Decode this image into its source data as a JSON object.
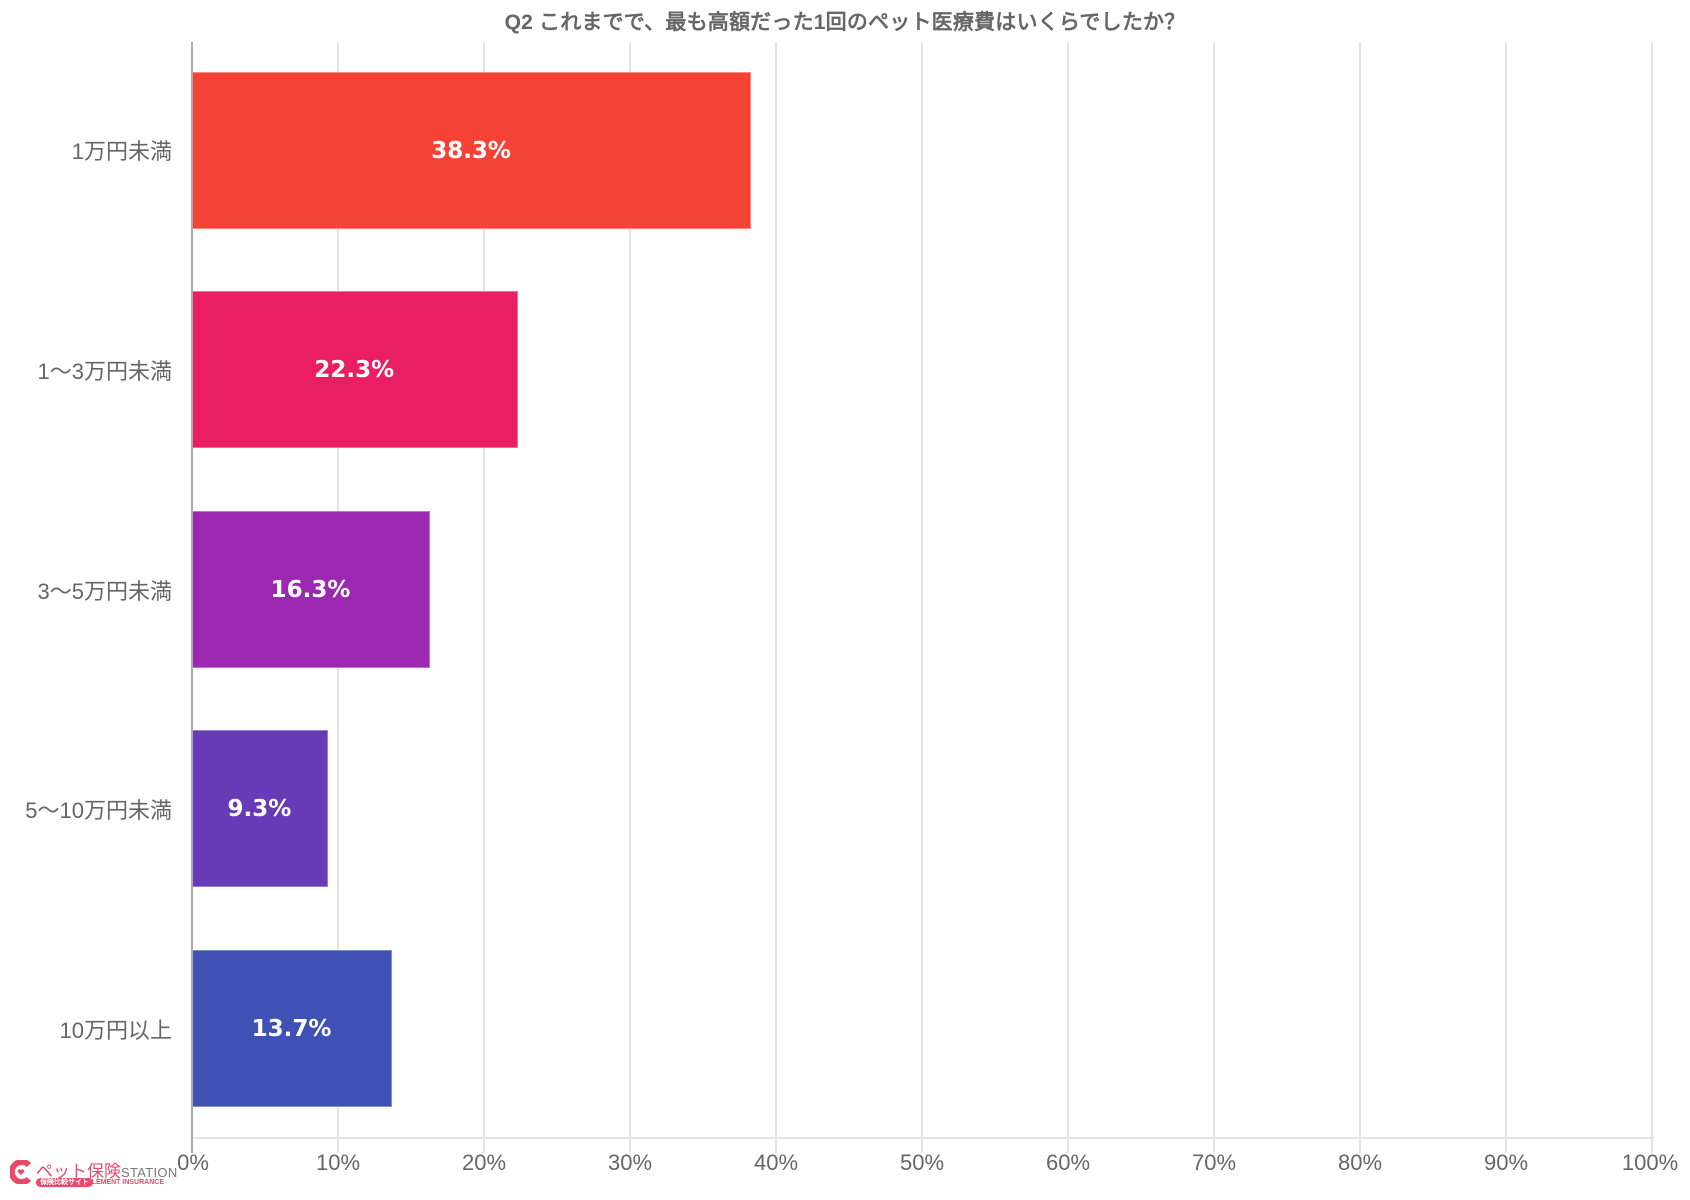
{
  "chart_data": {
    "type": "bar",
    "orientation": "horizontal",
    "title": "Q2 これまでで、最も高額だった1回のペット医療費はいくらでしたか？",
    "categories": [
      "1万円未満",
      "1〜3万円未満",
      "3〜5万円未満",
      "5〜10万円未満",
      "10万円以上"
    ],
    "values": [
      38.3,
      22.3,
      16.3,
      9.3,
      13.7
    ],
    "value_labels": [
      "38.3%",
      "22.3%",
      "16.3%",
      "9.3%",
      "13.7%"
    ],
    "colors": [
      "#F44336",
      "#E91E63",
      "#9C27B0",
      "#673AB7",
      "#3F51B5"
    ],
    "xlabel": "",
    "ylabel": "",
    "xlim": [
      0,
      100
    ],
    "x_ticks": [
      "0%",
      "10%",
      "20%",
      "30%",
      "40%",
      "50%",
      "60%",
      "70%",
      "80%",
      "90%",
      "100%"
    ],
    "grid": true,
    "legend": "none"
  },
  "logo": {
    "name": "ペット保険",
    "suffix": "STATION",
    "pill": "保険比較サイト",
    "sub": "ELEMENT INSURANCE",
    "color": "#e94a6c"
  }
}
